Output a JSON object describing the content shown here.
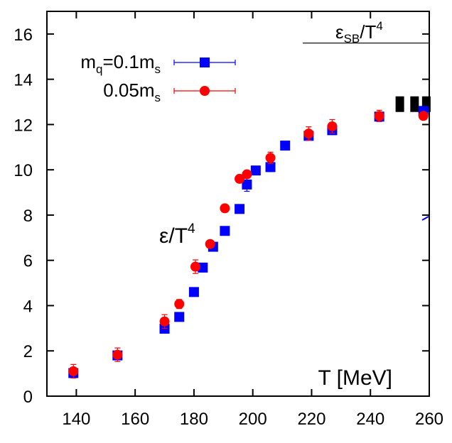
{
  "chart_data": {
    "type": "scatter",
    "title": "",
    "xlabel": "T [MeV]",
    "ylabel": "",
    "xlim": [
      130,
      260
    ],
    "ylim": [
      0,
      17
    ],
    "xticks": [
      140,
      160,
      180,
      200,
      220,
      240,
      260
    ],
    "yticks": [
      0,
      2,
      4,
      6,
      8,
      10,
      12,
      14,
      16
    ],
    "grid": false,
    "legend_position": "top-left",
    "annotations": [
      {
        "id": "sb_label",
        "text": "εSB/T4",
        "main": "ε",
        "sub": "SB",
        "slash": "/T",
        "sup": "4"
      },
      {
        "id": "eps_label",
        "text": "ε/T4",
        "main": "ε/T",
        "sup": "4"
      }
    ],
    "sb_limit_line": {
      "y": 15.6,
      "x_range": [
        217,
        260
      ]
    },
    "sb_limit_markers": {
      "y": 12.9,
      "x": [
        250,
        255,
        259
      ]
    },
    "series": [
      {
        "name": "mq=0.1ms",
        "legend_main": "m",
        "legend_sub1": "q",
        "legend_mid": "=0.1m",
        "legend_sub2": "s",
        "color": "#0000ff",
        "marker": "square",
        "x": [
          139,
          154,
          170,
          175,
          180,
          183,
          186.5,
          190.5,
          195.5,
          198,
          201,
          206,
          211,
          219,
          227,
          243,
          258
        ],
        "y": [
          1.02,
          1.8,
          2.98,
          3.5,
          4.6,
          5.68,
          6.6,
          7.3,
          8.27,
          9.35,
          9.97,
          10.12,
          11.07,
          11.5,
          11.75,
          12.35,
          12.6
        ],
        "err": [
          0.15,
          0.15,
          0.15,
          0.1,
          0.1,
          0.1,
          0.1,
          0.1,
          0.1,
          0.3,
          0.1,
          0.2,
          0.1,
          0.15,
          0.15,
          0.1,
          0.1
        ]
      },
      {
        "name": "0.05ms",
        "legend_main": "0.05m",
        "legend_sub1": "s",
        "color": "#ff0000",
        "marker": "circle",
        "x": [
          139,
          154,
          170,
          175,
          180.5,
          185.5,
          190.5,
          195.5,
          198,
          206,
          219,
          227,
          243,
          258
        ],
        "y": [
          1.1,
          1.83,
          3.3,
          4.07,
          5.72,
          6.72,
          8.3,
          9.6,
          9.8,
          10.53,
          11.6,
          11.92,
          12.38,
          12.38
        ],
        "err": [
          0.3,
          0.3,
          0.3,
          0.2,
          0.3,
          0.15,
          0.1,
          0.1,
          0.15,
          0.25,
          0.3,
          0.3,
          0.25,
          0.1
        ]
      }
    ]
  }
}
